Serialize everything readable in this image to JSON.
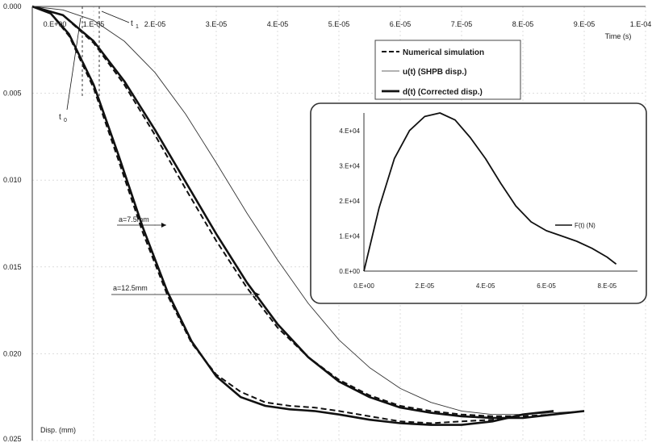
{
  "chart_data": [
    {
      "type": "line",
      "title": "",
      "xlabel": "Time (s)",
      "ylabel": "Disp. (mm)",
      "xlim": [
        0,
        0.0001
      ],
      "ylim": [
        0.025,
        0.0
      ],
      "y_inverted": true,
      "x_axis_position": "top",
      "grid": true,
      "x_tick_labels": [
        "0.E+00",
        "1.E-05",
        "2.E-05",
        "3.E-05",
        "4.E-05",
        "5.E-05",
        "6.E-05",
        "7.E-05",
        "8.E-05",
        "9.E-05",
        "1.E-04"
      ],
      "x_tick_values": [
        0,
        1e-05,
        2e-05,
        3e-05,
        4e-05,
        5e-05,
        6e-05,
        7e-05,
        8e-05,
        9e-05,
        0.0001
      ],
      "y_tick_labels": [
        "0.000",
        "0.005",
        "0.010",
        "0.015",
        "0.020",
        "0.025"
      ],
      "y_tick_values": [
        0,
        0.005,
        0.01,
        0.015,
        0.02,
        0.025
      ],
      "legend": {
        "placement": "top-right",
        "entries": [
          {
            "label": "Numerical simulation",
            "style": "dashed"
          },
          {
            "label": "u(t) (SHPB disp.)",
            "style": "thin"
          },
          {
            "label": "d(t) (Corrected disp.)",
            "style": "thick"
          }
        ]
      },
      "annotations": [
        {
          "text": "t",
          "sub": "0",
          "x": 1.5e-06,
          "y": 0.0004
        },
        {
          "text": "t",
          "sub": "1",
          "x": 3.2e-06,
          "y": 0.0004
        },
        {
          "text": "a=7.5mm"
        },
        {
          "text": "a=12.5mm"
        }
      ],
      "series": [
        {
          "group": "a=7.5mm",
          "style": "thin",
          "x": [
            0,
            5e-06,
            1e-05,
            1.5e-05,
            2e-05,
            2.5e-05,
            3e-05,
            3.5e-05,
            4e-05,
            4.5e-05,
            5e-05,
            5.5e-05,
            6e-05,
            6.5e-05,
            7e-05,
            7.5e-05,
            8e-05,
            8.5e-05,
            9e-05
          ],
          "y": [
            0,
            0.0002,
            0.0008,
            0.002,
            0.0038,
            0.0062,
            0.009,
            0.0119,
            0.0146,
            0.0171,
            0.0192,
            0.0208,
            0.022,
            0.0228,
            0.0233,
            0.0235,
            0.0235,
            0.0234,
            0.0233
          ]
        },
        {
          "group": "a=7.5mm",
          "style": "thick",
          "x": [
            0,
            5e-06,
            1e-05,
            1.5e-05,
            2e-05,
            2.5e-05,
            3e-05,
            3.5e-05,
            4e-05,
            4.5e-05,
            5e-05,
            5.5e-05,
            6e-05,
            6.5e-05,
            7e-05,
            7.5e-05,
            8e-05,
            8.5e-05,
            9e-05
          ],
          "y": [
            0,
            0.0005,
            0.002,
            0.0043,
            0.0071,
            0.0101,
            0.0131,
            0.0159,
            0.0183,
            0.0202,
            0.0216,
            0.0225,
            0.0231,
            0.0234,
            0.0236,
            0.0237,
            0.0237,
            0.0235,
            0.0233
          ]
        },
        {
          "group": "a=7.5mm",
          "style": "dashed",
          "x": [
            0,
            5e-06,
            1e-05,
            1.5e-05,
            2e-05,
            2.5e-05,
            3e-05,
            3.5e-05,
            4e-05,
            4.5e-05,
            5e-05,
            5.5e-05,
            6e-05,
            6.5e-05,
            7e-05,
            7.5e-05,
            8e-05,
            8.5e-05,
            9e-05
          ],
          "y": [
            0,
            0.0005,
            0.0021,
            0.0045,
            0.0074,
            0.0105,
            0.0135,
            0.0162,
            0.0185,
            0.0202,
            0.0215,
            0.0224,
            0.023,
            0.0233,
            0.0235,
            0.0236,
            0.0236,
            0.0235,
            0.0233
          ]
        },
        {
          "group": "a=12.5mm",
          "style": "thick",
          "x": [
            0,
            3e-06,
            6e-06,
            1e-05,
            1.4e-05,
            1.8e-05,
            2.2e-05,
            2.6e-05,
            3e-05,
            3.4e-05,
            3.8e-05,
            4.2e-05,
            4.6e-05,
            5e-05,
            5.5e-05,
            6e-05,
            6.5e-05,
            7e-05,
            7.5e-05,
            8e-05,
            8.5e-05
          ],
          "y": [
            0,
            0.0004,
            0.0016,
            0.0045,
            0.0085,
            0.0127,
            0.0164,
            0.0193,
            0.0213,
            0.0225,
            0.023,
            0.0232,
            0.0233,
            0.0235,
            0.0238,
            0.024,
            0.0241,
            0.0241,
            0.0239,
            0.0235,
            0.0233
          ]
        },
        {
          "group": "a=12.5mm",
          "style": "dashed",
          "x": [
            0,
            3e-06,
            6e-06,
            1e-05,
            1.4e-05,
            1.8e-05,
            2.2e-05,
            2.6e-05,
            3e-05,
            3.4e-05,
            3.8e-05,
            4.2e-05,
            4.6e-05,
            5e-05,
            5.5e-05,
            6e-05,
            6.5e-05,
            7e-05,
            7.5e-05,
            8e-05,
            8.5e-05
          ],
          "y": [
            0,
            0.0004,
            0.0017,
            0.0047,
            0.0088,
            0.013,
            0.0166,
            0.0194,
            0.0212,
            0.0222,
            0.0228,
            0.023,
            0.0231,
            0.0233,
            0.0236,
            0.0239,
            0.024,
            0.0239,
            0.0238,
            0.0235,
            0.0233
          ]
        }
      ]
    },
    {
      "type": "line",
      "title": "",
      "inset": true,
      "xlim": [
        0,
        9e-05
      ],
      "ylim": [
        0,
        45000
      ],
      "grid": false,
      "x_tick_labels": [
        "0.E+00",
        "2.E-05",
        "4.E-05",
        "6.E-05",
        "8.E-05"
      ],
      "x_tick_values": [
        0,
        2e-05,
        4e-05,
        6e-05,
        8e-05
      ],
      "y_tick_labels": [
        "0.E+00",
        "1.E+04",
        "2.E+04",
        "3.E+04",
        "4.E+04"
      ],
      "y_tick_values": [
        0,
        10000,
        20000,
        30000,
        40000
      ],
      "legend": {
        "placement": "right",
        "entries": [
          {
            "label": "F(t) (N)",
            "style": "line"
          }
        ]
      },
      "series": [
        {
          "name": "F(t) (N)",
          "x": [
            0,
            5e-06,
            1e-05,
            1.5e-05,
            2e-05,
            2.5e-05,
            3e-05,
            3.5e-05,
            4e-05,
            4.5e-05,
            5e-05,
            5.5e-05,
            6e-05,
            6.5e-05,
            7e-05,
            7.5e-05,
            8e-05,
            8.3e-05
          ],
          "y": [
            0,
            18000,
            32000,
            40000,
            44000,
            45000,
            43000,
            38000,
            32000,
            25000,
            18500,
            14000,
            11500,
            10000,
            8500,
            6500,
            4000,
            2000
          ]
        }
      ]
    }
  ]
}
